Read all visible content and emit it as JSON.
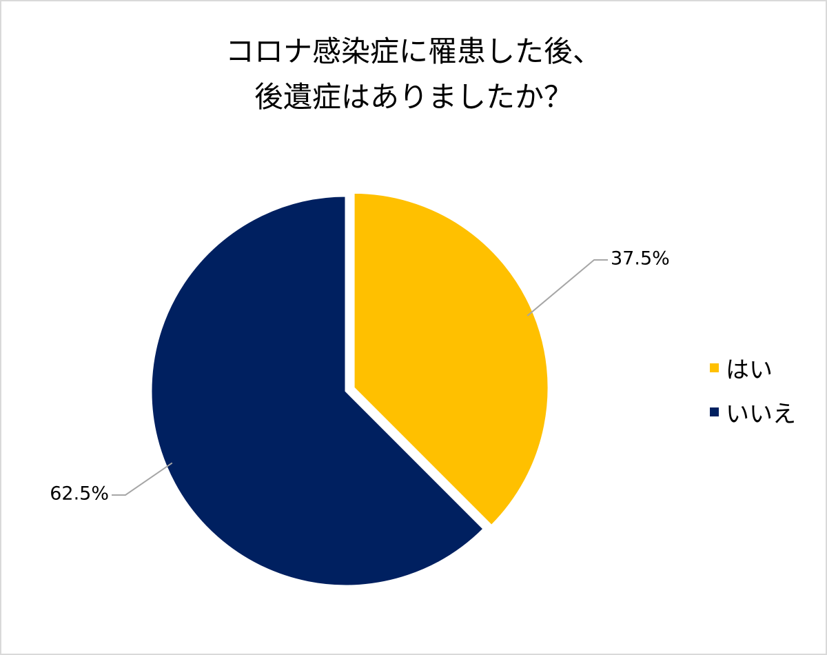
{
  "chart_data": {
    "type": "pie",
    "title_lines": [
      "コロナ感染症に罹患した後、",
      "後遺症はありましたか？"
    ],
    "categories": [
      "はい",
      "いいえ"
    ],
    "values": [
      37.5,
      62.5
    ],
    "data_labels": [
      "37.5%",
      "62.5%"
    ],
    "colors": [
      "#FFC000",
      "#002060"
    ],
    "legend_placement": "right",
    "exploded_slice": "はい"
  }
}
